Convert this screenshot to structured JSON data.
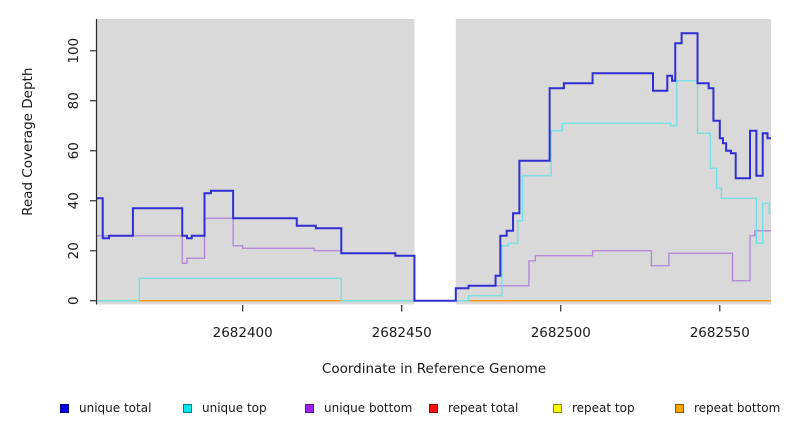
{
  "figure": {
    "background": "#ffffff",
    "plot_background": "#d9d9d9",
    "axis_color": "#2b2b2b",
    "text_color": "#1a1a1a"
  },
  "chart_data": {
    "type": "line",
    "subtype": "step",
    "title": "",
    "xlabel": "Coordinate in Reference Genome",
    "ylabel": "Read Coverage Depth",
    "grid": false,
    "legend_position": "bottom",
    "xlim": [
      2682354.2,
      2682566.1
    ],
    "ylim": [
      -1.5,
      112.7
    ],
    "x_ticks": [
      2682400,
      2682450,
      2682500,
      2682550
    ],
    "y_ticks": [
      0,
      20,
      40,
      60,
      80,
      100
    ],
    "no_data_region": {
      "from": 2682454,
      "to": 2682467
    },
    "series": [
      {
        "name": "unique total",
        "line_color": "#2e2ed2",
        "line_width": 2,
        "points": [
          [
            2682354.2,
            41
          ],
          [
            2682356,
            25
          ],
          [
            2682358,
            26
          ],
          [
            2682365.5,
            37
          ],
          [
            2682381,
            26
          ],
          [
            2682382.5,
            25
          ],
          [
            2682384,
            26
          ],
          [
            2682388,
            43
          ],
          [
            2682390,
            44
          ],
          [
            2682397,
            33
          ],
          [
            2682417,
            30
          ],
          [
            2682423,
            29
          ],
          [
            2682431,
            19
          ],
          [
            2682448,
            18
          ],
          [
            2682454,
            0
          ],
          [
            2682467,
            5
          ],
          [
            2682471,
            6
          ],
          [
            2682479.5,
            10
          ],
          [
            2682481,
            26
          ],
          [
            2682483,
            28
          ],
          [
            2682485,
            35
          ],
          [
            2682487,
            56
          ],
          [
            2682496.5,
            85
          ],
          [
            2682501,
            87
          ],
          [
            2682510,
            91
          ],
          [
            2682529,
            84
          ],
          [
            2682533.5,
            90
          ],
          [
            2682535,
            88
          ],
          [
            2682536,
            103
          ],
          [
            2682538,
            107
          ],
          [
            2682543,
            87
          ],
          [
            2682546.5,
            85
          ],
          [
            2682548,
            72
          ],
          [
            2682550,
            65
          ],
          [
            2682551,
            63
          ],
          [
            2682552,
            60
          ],
          [
            2682553.5,
            59
          ],
          [
            2682555,
            49
          ],
          [
            2682559.5,
            68
          ],
          [
            2682561.5,
            50
          ],
          [
            2682563.5,
            67
          ],
          [
            2682565,
            65
          ]
        ]
      },
      {
        "name": "unique top",
        "line_color": "#6ce0e8",
        "line_width": 1.3,
        "points": [
          [
            2682354.2,
            0
          ],
          [
            2682367.5,
            9
          ],
          [
            2682431,
            0
          ],
          [
            2682471,
            2
          ],
          [
            2682481.5,
            22
          ],
          [
            2682483.5,
            23
          ],
          [
            2682486.5,
            32
          ],
          [
            2682488,
            50
          ],
          [
            2682497,
            68
          ],
          [
            2682500.5,
            71
          ],
          [
            2682534.5,
            70
          ],
          [
            2682536.5,
            88
          ],
          [
            2682543,
            67
          ],
          [
            2682547,
            53
          ],
          [
            2682549,
            45
          ],
          [
            2682550.5,
            41
          ],
          [
            2682561.5,
            23
          ],
          [
            2682563.5,
            39
          ],
          [
            2682565.5,
            35
          ]
        ]
      },
      {
        "name": "unique bottom",
        "line_color": "#b383da",
        "line_width": 1.3,
        "points": [
          [
            2682354.2,
            26
          ],
          [
            2682381,
            15
          ],
          [
            2682382.5,
            17
          ],
          [
            2682388,
            33
          ],
          [
            2682397,
            22
          ],
          [
            2682400,
            21
          ],
          [
            2682422.5,
            20
          ],
          [
            2682431,
            19
          ],
          [
            2682448,
            18
          ],
          [
            2682454,
            0
          ],
          [
            2682467,
            5
          ],
          [
            2682471,
            6
          ],
          [
            2682490,
            16
          ],
          [
            2682492,
            18
          ],
          [
            2682510,
            20
          ],
          [
            2682528.5,
            14
          ],
          [
            2682534,
            19
          ],
          [
            2682554,
            8
          ],
          [
            2682559.5,
            26
          ],
          [
            2682561,
            28
          ]
        ]
      },
      {
        "name": "repeat total",
        "line_color": "#cc0000",
        "line_width": 1.3,
        "points": [
          [
            2682354.2,
            0
          ]
        ]
      },
      {
        "name": "repeat top",
        "line_color": "#e8e800",
        "line_width": 1.3,
        "points": [
          [
            2682354.2,
            0
          ]
        ]
      },
      {
        "name": "repeat bottom",
        "line_color": "#ff9914",
        "line_width": 1.6,
        "points": [
          [
            2682354.2,
            0
          ]
        ]
      }
    ],
    "zero_line_overlap_segments": {
      "color": "#8fce9e",
      "ranges": [
        [
          2682354.2,
          2682367.5
        ],
        [
          2682431,
          2682471
        ]
      ]
    },
    "legend": [
      {
        "label": "unique total",
        "fill": "#0000e8",
        "border": "#00008b"
      },
      {
        "label": "unique top",
        "fill": "#00e5ee",
        "border": "#00838f"
      },
      {
        "label": "unique bottom",
        "fill": "#a020f0",
        "border": "#551a8b"
      },
      {
        "label": "repeat total",
        "fill": "#ff1010",
        "border": "#8b0000"
      },
      {
        "label": "repeat top",
        "fill": "#ffff00",
        "border": "#8b8b00"
      },
      {
        "label": "repeat bottom",
        "fill": "#ffa500",
        "border": "#8b5a00"
      }
    ]
  }
}
